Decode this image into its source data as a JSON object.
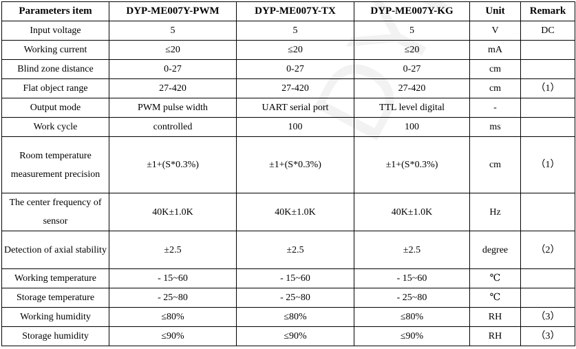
{
  "headers": [
    "Parameters item",
    "DYP-ME007Y-PWM",
    "DYP-ME007Y-TX",
    "DYP-ME007Y-KG",
    "Unit",
    "Remark"
  ],
  "rows": [
    {
      "param": "Input voltage",
      "pwm": "5",
      "tx": "5",
      "kg": "5",
      "unit": "V",
      "remark": "DC"
    },
    {
      "param": "Working current",
      "pwm": "≤20",
      "tx": "≤20",
      "kg": "≤20",
      "unit": "mA",
      "remark": ""
    },
    {
      "param": "Blind zone distance",
      "pwm": "0-27",
      "tx": "0-27",
      "kg": "0-27",
      "unit": "cm",
      "remark": ""
    },
    {
      "param": "Flat object range",
      "pwm": "27-420",
      "tx": "27-420",
      "kg": "27-420",
      "unit": "cm",
      "remark": "（1）"
    },
    {
      "param": "Output mode",
      "pwm": "PWM pulse width",
      "tx": "UART serial port",
      "kg": "TTL level digital",
      "unit": "-",
      "remark": ""
    },
    {
      "param": "Work cycle",
      "pwm": "controlled",
      "tx": "100",
      "kg": "100",
      "unit": "ms",
      "remark": ""
    },
    {
      "param": "Room temperature measurement precision",
      "pwm": "±1+(S*0.3%)",
      "tx": "±1+(S*0.3%)",
      "kg": "±1+(S*0.3%)",
      "unit": "cm",
      "remark": "（1）"
    },
    {
      "param": "The center frequency of sensor",
      "pwm": "40K±1.0K",
      "tx": "40K±1.0K",
      "kg": "40K±1.0K",
      "unit": "Hz",
      "remark": ""
    },
    {
      "param": "Detection of axial stability",
      "pwm": "±2.5",
      "tx": "±2.5",
      "kg": "±2.5",
      "unit": "degree",
      "remark": "（2）"
    },
    {
      "param": "Working temperature",
      "pwm": "- 15~60",
      "tx": "- 15~60",
      "kg": "- 15~60",
      "unit": "℃",
      "remark": ""
    },
    {
      "param": "Storage temperature",
      "pwm": "- 25~80",
      "tx": "- 25~80",
      "kg": "- 25~80",
      "unit": "℃",
      "remark": ""
    },
    {
      "param": "Working humidity",
      "pwm": "≤80%",
      "tx": "≤80%",
      "kg": "≤80%",
      "unit": "RH",
      "remark": "（3）"
    },
    {
      "param": "Storage humidity",
      "pwm": "≤90%",
      "tx": "≤90%",
      "kg": "≤90%",
      "unit": "RH",
      "remark": "（3）"
    }
  ],
  "watermark": "DYP"
}
